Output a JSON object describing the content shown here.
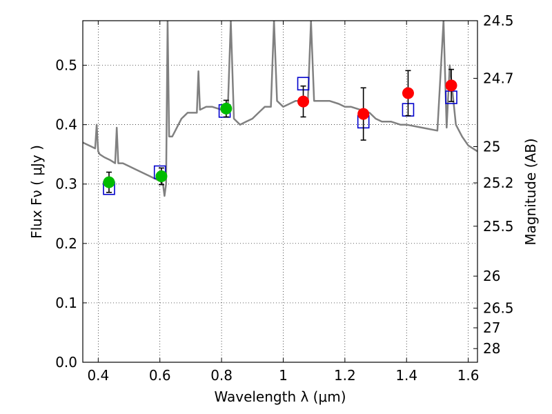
{
  "chart_data": {
    "type": "scatter",
    "title": "",
    "xlabel": "Wavelength  λ (μm)",
    "ylabel": "Flux  Fν  ( μJy )",
    "ylabel_right": "Magnitude (AB)",
    "xlim": [
      0.35,
      1.63
    ],
    "ylim": [
      0.0,
      0.575
    ],
    "grid": true,
    "x_ticks": [
      0.4,
      0.6,
      0.8,
      1.0,
      1.2,
      1.4,
      1.6
    ],
    "x_tick_labels": [
      "0.4",
      "0.6",
      "0.8",
      "1",
      "1.2",
      "1.4",
      "1.6"
    ],
    "y_ticks": [
      0.0,
      0.1,
      0.2,
      0.3,
      0.4,
      0.5
    ],
    "y_tick_labels": [
      "0.0",
      "0.1",
      "0.2",
      "0.3",
      "0.4",
      "0.5"
    ],
    "right_ticks": [
      {
        "label": "24.5",
        "flux": 0.575
      },
      {
        "label": "24.7",
        "flux": 0.478
      },
      {
        "label": "25",
        "flux": 0.363
      },
      {
        "label": "25.2",
        "flux": 0.302
      },
      {
        "label": "25.5",
        "flux": 0.229
      },
      {
        "label": "26",
        "flux": 0.145
      },
      {
        "label": "26.5",
        "flux": 0.091
      },
      {
        "label": "27",
        "flux": 0.058
      },
      {
        "label": "28",
        "flux": 0.023
      }
    ],
    "series": [
      {
        "marker": "circle",
        "color": "#00bb00",
        "x": [
          0.435,
          0.605,
          0.815
        ],
        "y": [
          0.303,
          0.313,
          0.427
        ],
        "yerr": [
          0.017,
          0.014,
          0.014
        ]
      },
      {
        "marker": "circle",
        "color": "#ff0000",
        "x": [
          1.065,
          1.26,
          1.405,
          1.545
        ],
        "y": [
          0.439,
          0.418,
          0.453,
          0.466
        ],
        "yerr": [
          0.026,
          0.044,
          0.038,
          0.027
        ]
      },
      {
        "marker": "square",
        "color": "#0000cc",
        "x": [
          0.435,
          0.6,
          0.81,
          1.065,
          1.26,
          1.405,
          1.545
        ],
        "y": [
          0.293,
          0.32,
          0.423,
          0.469,
          0.405,
          0.425,
          0.446
        ]
      },
      {
        "marker": "line",
        "color": "#808080",
        "x": [
          0.35,
          0.37,
          0.39,
          0.395,
          0.4,
          0.405,
          0.42,
          0.44,
          0.455,
          0.46,
          0.465,
          0.48,
          0.5,
          0.52,
          0.54,
          0.56,
          0.58,
          0.6,
          0.61,
          0.615,
          0.62,
          0.625,
          0.63,
          0.64,
          0.65,
          0.66,
          0.67,
          0.68,
          0.69,
          0.7,
          0.72,
          0.725,
          0.73,
          0.75,
          0.77,
          0.8,
          0.82,
          0.83,
          0.84,
          0.86,
          0.88,
          0.9,
          0.92,
          0.94,
          0.96,
          0.97,
          0.98,
          1.0,
          1.02,
          1.04,
          1.06,
          1.08,
          1.09,
          1.1,
          1.12,
          1.15,
          1.18,
          1.2,
          1.22,
          1.25,
          1.28,
          1.3,
          1.32,
          1.35,
          1.38,
          1.4,
          1.45,
          1.5,
          1.52,
          1.53,
          1.54,
          1.56,
          1.58,
          1.6,
          1.63
        ],
        "y": [
          0.37,
          0.365,
          0.36,
          0.4,
          0.355,
          0.35,
          0.345,
          0.34,
          0.335,
          0.395,
          0.335,
          0.335,
          0.33,
          0.325,
          0.32,
          0.315,
          0.31,
          0.305,
          0.3,
          0.28,
          0.3,
          0.575,
          0.38,
          0.38,
          0.39,
          0.4,
          0.41,
          0.415,
          0.42,
          0.42,
          0.42,
          0.49,
          0.425,
          0.43,
          0.43,
          0.425,
          0.42,
          0.575,
          0.41,
          0.4,
          0.405,
          0.41,
          0.42,
          0.43,
          0.43,
          0.575,
          0.44,
          0.43,
          0.435,
          0.44,
          0.44,
          0.44,
          0.575,
          0.44,
          0.44,
          0.44,
          0.435,
          0.43,
          0.43,
          0.425,
          0.42,
          0.41,
          0.405,
          0.405,
          0.4,
          0.4,
          0.395,
          0.39,
          0.575,
          0.395,
          0.5,
          0.4,
          0.38,
          0.365,
          0.355
        ]
      }
    ]
  }
}
